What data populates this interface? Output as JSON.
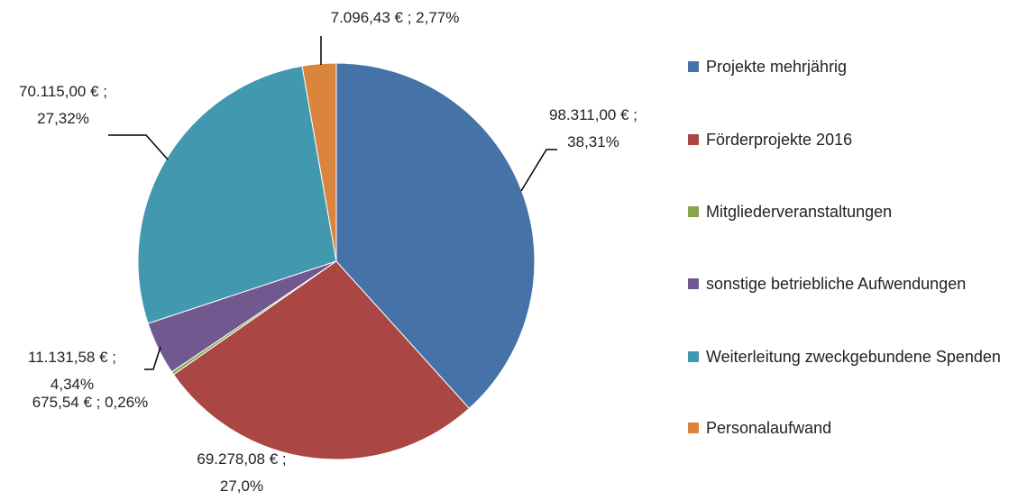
{
  "chart_data": {
    "type": "pie",
    "categories": [
      "Projekte mehrjährig",
      "Förderprojekte 2016",
      "Mitgliederveranstaltungen",
      "sonstige betriebliche Aufwendungen",
      "Weiterleitung zweckgebundene Spenden",
      "Personalaufwand"
    ],
    "values": [
      98311.0,
      69278.08,
      675.54,
      11131.58,
      70115.0,
      7096.43
    ],
    "value_labels": [
      "98.311,00 € ; 38,31%",
      "69.278,08 € ; 27,0%",
      "675,54 € ; 0,26%",
      "11.131,58 € ; 4,34%",
      "70.115,00 € ; 27,32%",
      "7.096,43 € ; 2,77%"
    ],
    "colors": [
      "#4572a7",
      "#aa4643",
      "#89a54e",
      "#71588f",
      "#4198af",
      "#db843d"
    ],
    "legend": "right"
  }
}
